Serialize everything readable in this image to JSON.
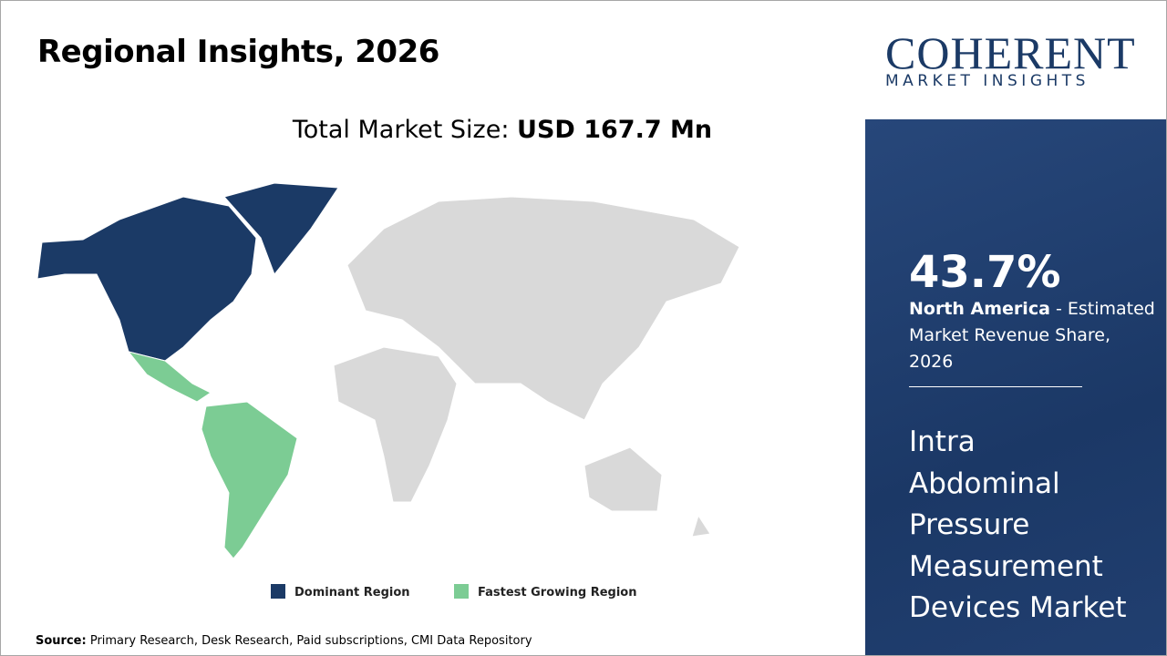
{
  "header": {
    "title": "Regional Insights, 2026"
  },
  "market_size": {
    "label": "Total Market Size:",
    "value": "USD 167.7 Mn"
  },
  "legend": {
    "dominant": "Dominant Region",
    "fastest": "Fastest Growing Region"
  },
  "source": {
    "label": "Source:",
    "text": "Primary Research, Desk Research, Paid subscriptions, CMI Data Repository"
  },
  "logo": {
    "name": "COHERENT",
    "tagline": "MARKET INSIGHTS"
  },
  "highlight": {
    "share": "43.7%",
    "region": "North America",
    "description": "- Estimated Market Revenue Share, 2026"
  },
  "market_name_lines": [
    "Intra",
    "Abdominal",
    "Pressure",
    "Measurement",
    "Devices Market"
  ]
}
